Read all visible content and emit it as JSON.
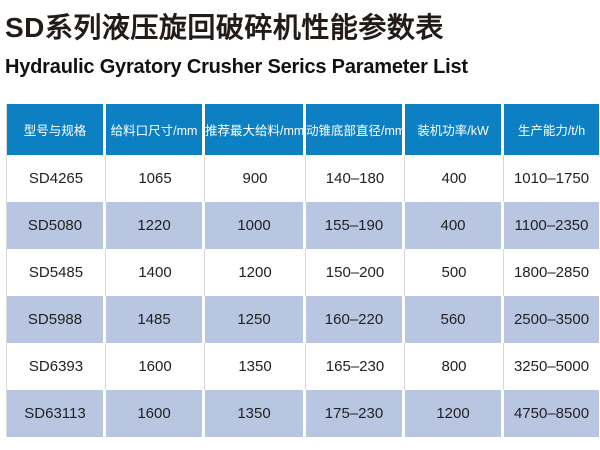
{
  "title_zh": "SD系列液压旋回破碎机性能参数表",
  "title_en": "Hydraulic Gyratory Crusher Serics Parameter List",
  "colors": {
    "header_bg": "#0d80c4",
    "alt_row_bg": "#b9c6e2",
    "header_text": "#ffffff",
    "body_text": "#222222"
  },
  "table": {
    "headers": [
      "型号与规格",
      "给料口尺寸/mm",
      "推荐最大给料/mm",
      "动锥底部直径/mm",
      "装机功率/kW",
      "生产能力/t/h"
    ],
    "rows": [
      [
        "SD4265",
        "1065",
        "900",
        "140–180",
        "400",
        "1010–1750"
      ],
      [
        "SD5080",
        "1220",
        "1000",
        "155–190",
        "400",
        "1100–2350"
      ],
      [
        "SD5485",
        "1400",
        "1200",
        "150–200",
        "500",
        "1800–2850"
      ],
      [
        "SD5988",
        "1485",
        "1250",
        "160–220",
        "560",
        "2500–3500"
      ],
      [
        "SD6393",
        "1600",
        "1350",
        "165–230",
        "800",
        "3250–5000"
      ],
      [
        "SD63113",
        "1600",
        "1350",
        "175–230",
        "1200",
        "4750–8500"
      ]
    ]
  },
  "chart_data": {
    "type": "table",
    "title": "SD系列液压旋回破碎机性能参数表",
    "subtitle": "Hydraulic Gyratory Crusher Serics Parameter List",
    "columns": [
      "型号与规格",
      "给料口尺寸/mm",
      "推荐最大给料/mm",
      "动锥底部直径/mm",
      "装机功率/kW",
      "生产能力/t/h"
    ],
    "rows": [
      [
        "SD4265",
        1065,
        900,
        "140–180",
        400,
        "1010–1750"
      ],
      [
        "SD5080",
        1220,
        1000,
        "155–190",
        400,
        "1100–2350"
      ],
      [
        "SD5485",
        1400,
        1200,
        "150–200",
        500,
        "1800–2850"
      ],
      [
        "SD5988",
        1485,
        1250,
        "160–220",
        560,
        "2500–3500"
      ],
      [
        "SD6393",
        1600,
        1350,
        "165–230",
        800,
        "3250–5000"
      ],
      [
        "SD63113",
        1600,
        1350,
        "175–230",
        1200,
        "4750–8500"
      ]
    ]
  }
}
